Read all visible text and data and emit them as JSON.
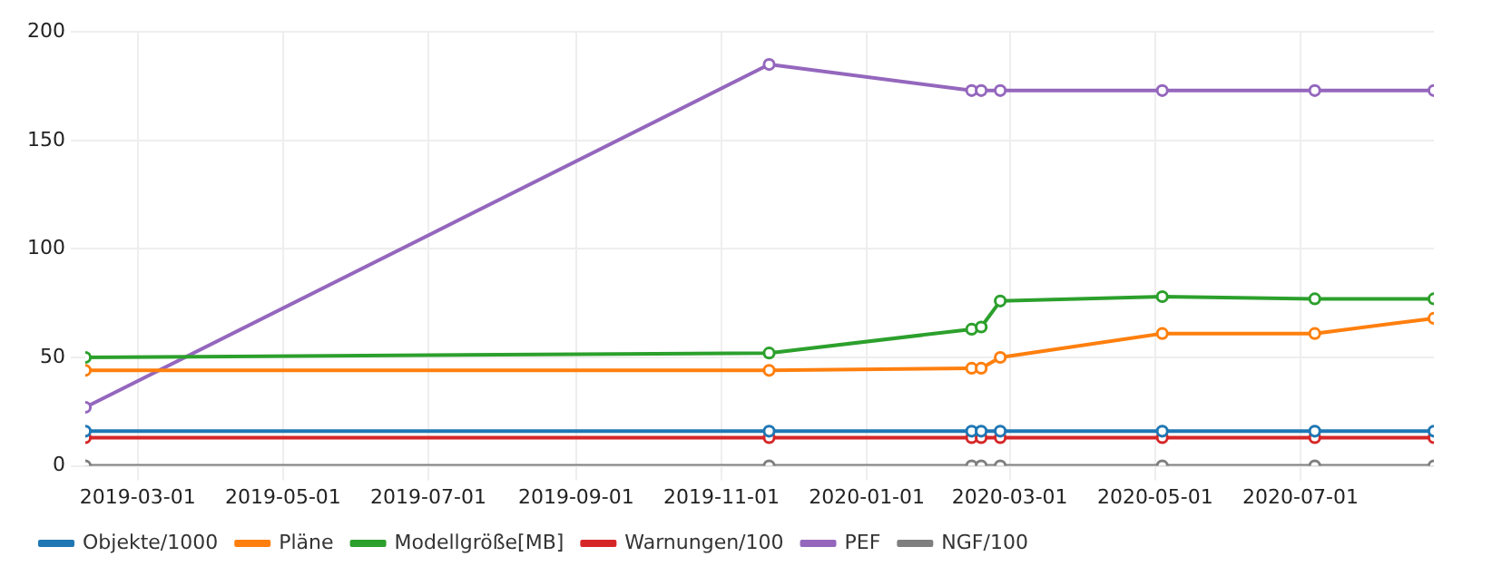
{
  "chart_data": {
    "type": "line",
    "x": [
      "2019-02-07",
      "2019-11-21",
      "2020-02-14",
      "2020-02-18",
      "2020-02-26",
      "2020-05-04",
      "2020-07-07",
      "2020-08-26"
    ],
    "series": [
      {
        "name": "Objekte/1000",
        "color": "#1f77b4",
        "values": [
          16,
          16,
          16,
          16,
          16,
          16,
          16,
          16
        ]
      },
      {
        "name": "Pläne",
        "color": "#ff7f0e",
        "values": [
          44,
          44,
          45,
          45,
          50,
          61,
          61,
          68
        ]
      },
      {
        "name": "Modellgröße[MB]",
        "color": "#2ca02c",
        "values": [
          50,
          52,
          63,
          64,
          76,
          78,
          77,
          77
        ]
      },
      {
        "name": "Warnungen/100",
        "color": "#d62728",
        "values": [
          13,
          13,
          13,
          13,
          13,
          13,
          13,
          13
        ]
      },
      {
        "name": "PEF",
        "color": "#9467bd",
        "values": [
          27,
          185,
          173,
          173,
          173,
          173,
          173,
          173
        ]
      },
      {
        "name": "NGF/100",
        "color": "#7f7f7f",
        "values": [
          0,
          0,
          0,
          0,
          0,
          0,
          0,
          0
        ]
      }
    ],
    "xlim": [
      "2019-02-07",
      "2020-08-26"
    ],
    "xticks": [
      "2019-03-01",
      "2019-05-01",
      "2019-07-01",
      "2019-09-01",
      "2019-11-01",
      "2020-01-01",
      "2020-03-01",
      "2020-05-01",
      "2020-07-01"
    ],
    "ylim": [
      0,
      200
    ],
    "yticks": [
      0,
      50,
      100,
      150,
      200
    ],
    "grid": true,
    "legend": "bottom left",
    "marker": "circle",
    "line_style": "solid"
  }
}
